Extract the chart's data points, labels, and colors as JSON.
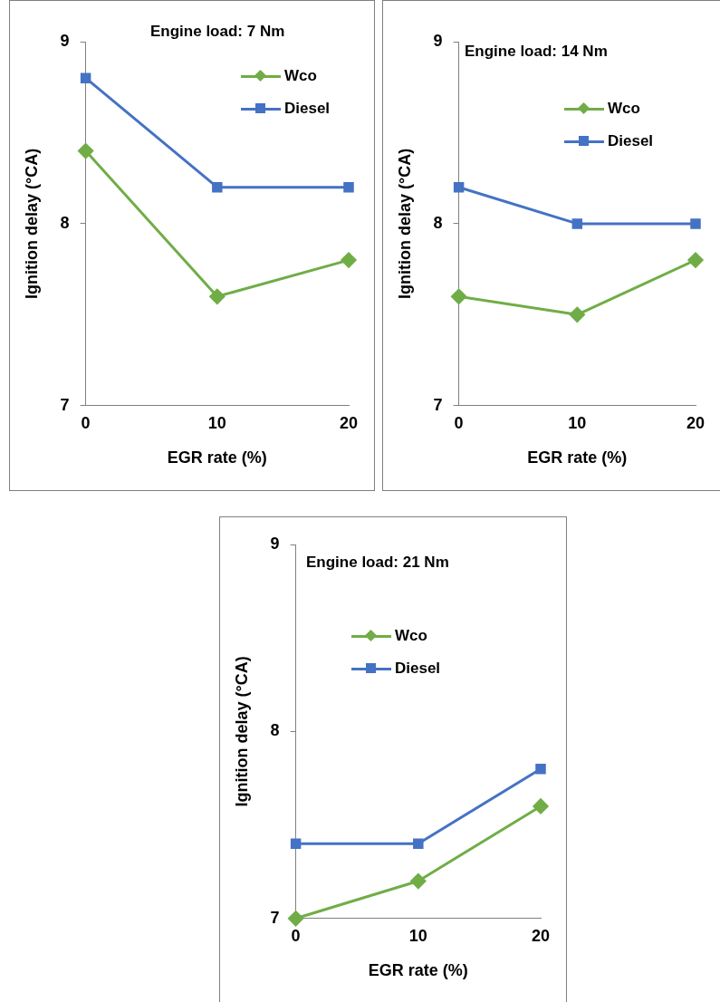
{
  "chart_data": [
    {
      "type": "line",
      "title": "Engine load: 7 Nm",
      "xlabel": "EGR rate (%)",
      "ylabel": "Ignition delay (°CA)",
      "x": [
        0,
        10,
        20
      ],
      "xlim": [
        0,
        20
      ],
      "xticks": [
        0,
        10,
        20
      ],
      "ylim": [
        7,
        9
      ],
      "yticks": [
        7,
        8,
        9
      ],
      "legend": "top right",
      "series": [
        {
          "name": "Wco",
          "color": "#70ad47",
          "marker": "diamond",
          "values": [
            8.4,
            7.6,
            7.8
          ]
        },
        {
          "name": "Diesel",
          "color": "#4472c4",
          "marker": "square",
          "values": [
            8.8,
            8.2,
            8.2
          ]
        }
      ]
    },
    {
      "type": "line",
      "title": "Engine load: 14 Nm",
      "xlabel": "EGR rate (%)",
      "ylabel": "Ignition delay (°CA)",
      "x": [
        0,
        10,
        20
      ],
      "xlim": [
        0,
        20
      ],
      "xticks": [
        0,
        10,
        20
      ],
      "ylim": [
        7,
        9
      ],
      "yticks": [
        7,
        8,
        9
      ],
      "legend": "top right",
      "series": [
        {
          "name": "Wco",
          "color": "#70ad47",
          "marker": "diamond",
          "values": [
            7.6,
            7.5,
            7.8
          ]
        },
        {
          "name": "Diesel",
          "color": "#4472c4",
          "marker": "square",
          "values": [
            8.2,
            8.0,
            8.0
          ]
        }
      ]
    },
    {
      "type": "line",
      "title": "Engine load: 21 Nm",
      "xlabel": "EGR rate (%)",
      "ylabel": "Ignition delay (°CA)",
      "x": [
        0,
        10,
        20
      ],
      "xlim": [
        0,
        20
      ],
      "xticks": [
        0,
        10,
        20
      ],
      "ylim": [
        7,
        9
      ],
      "yticks": [
        7,
        8,
        9
      ],
      "legend": "top left",
      "series": [
        {
          "name": "Wco",
          "color": "#70ad47",
          "marker": "diamond",
          "values": [
            7.0,
            7.2,
            7.6
          ]
        },
        {
          "name": "Diesel",
          "color": "#4472c4",
          "marker": "square",
          "values": [
            7.4,
            7.4,
            7.8
          ]
        }
      ]
    }
  ]
}
